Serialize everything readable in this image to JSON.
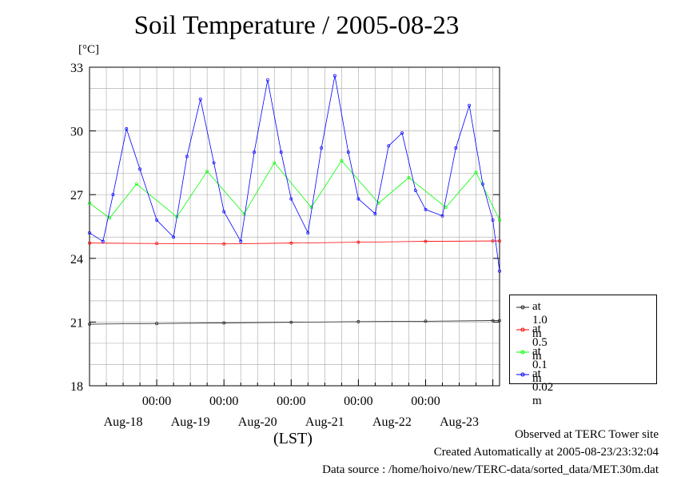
{
  "chart_data": {
    "type": "line",
    "title": "Soil Temperature / 2005-08-23",
    "ylabel": "[°C]",
    "xlabel": "(LST)",
    "ylim": [
      18,
      33
    ],
    "yticks": [
      18,
      21,
      24,
      27,
      30,
      33
    ],
    "xlim": [
      0,
      6.1
    ],
    "xtick_positions": [
      1,
      2,
      3,
      4,
      5
    ],
    "xtick_time_label": "00:00",
    "day_labels": [
      "Aug-18",
      "Aug-19",
      "Aug-20",
      "Aug-21",
      "Aug-22",
      "Aug-23"
    ],
    "grid": true,
    "legend_position": "right",
    "series": [
      {
        "name": "at 1.0 m",
        "color": "#222222",
        "x": [
          0,
          1,
          2,
          3,
          4,
          5,
          6,
          6.1
        ],
        "values": [
          20.9,
          20.93,
          20.96,
          20.99,
          21.02,
          21.04,
          21.07,
          21.07
        ]
      },
      {
        "name": "at 0.5 m",
        "color": "#ff0000",
        "x": [
          0,
          1,
          2,
          3,
          4,
          5,
          6,
          6.1
        ],
        "values": [
          24.72,
          24.7,
          24.68,
          24.72,
          24.76,
          24.8,
          24.82,
          24.82
        ]
      },
      {
        "name": "at 0.1 m",
        "color": "#00ff00",
        "x": [
          0,
          0.3,
          0.7,
          1.3,
          1.75,
          2.3,
          2.75,
          3.3,
          3.75,
          4.3,
          4.75,
          5.3,
          5.75,
          6.1
        ],
        "values": [
          26.6,
          25.9,
          27.5,
          25.95,
          28.1,
          26.1,
          28.5,
          26.4,
          28.6,
          26.6,
          27.8,
          26.4,
          28.05,
          25.8
        ]
      },
      {
        "name": "at 0.02 m",
        "color": "#0000ff",
        "x": [
          0,
          0.2,
          0.35,
          0.55,
          0.75,
          1.0,
          1.25,
          1.45,
          1.65,
          1.85,
          2.0,
          2.25,
          2.45,
          2.65,
          2.85,
          3.0,
          3.25,
          3.45,
          3.65,
          3.85,
          4.0,
          4.25,
          4.45,
          4.65,
          4.85,
          5.0,
          5.25,
          5.45,
          5.65,
          5.85,
          6.0,
          6.1
        ],
        "values": [
          25.2,
          24.8,
          27.0,
          30.1,
          28.2,
          25.8,
          25.0,
          28.8,
          31.5,
          28.5,
          26.2,
          24.8,
          29.0,
          32.4,
          29.0,
          26.8,
          25.2,
          29.2,
          32.6,
          29.0,
          26.8,
          26.1,
          29.3,
          29.9,
          27.2,
          26.3,
          26.0,
          29.2,
          31.2,
          27.5,
          25.8,
          23.4
        ]
      }
    ]
  },
  "footer": {
    "observed": "Observed at TERC Tower site",
    "created": "Created Automatically at 2005-08-23/23:32:04",
    "source": "Data source : /home/hoivo/new/TERC-data/sorted_data/MET.30m.dat"
  }
}
